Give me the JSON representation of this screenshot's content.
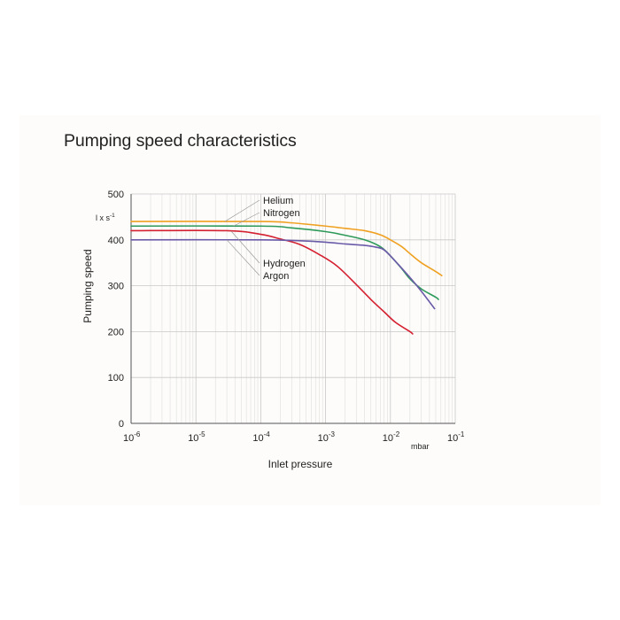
{
  "chart_data": {
    "type": "line",
    "title": "Pumping speed characteristics",
    "xlabel": "Inlet pressure",
    "x_unit": "mbar",
    "ylabel": "Pumping speed",
    "y_unit": "l x s",
    "y_unit_exp": "-1",
    "x_scale": "log",
    "xlim": [
      1e-06,
      0.1
    ],
    "ylim": [
      0,
      500
    ],
    "x_ticks": [
      {
        "value": 1e-06,
        "base": "10",
        "exp": "-6"
      },
      {
        "value": 1e-05,
        "base": "10",
        "exp": "-5"
      },
      {
        "value": 0.0001,
        "base": "10",
        "exp": "-4"
      },
      {
        "value": 0.001,
        "base": "10",
        "exp": "-3"
      },
      {
        "value": 0.01,
        "base": "10",
        "exp": "-2"
      },
      {
        "value": 0.1,
        "base": "10",
        "exp": "-1"
      }
    ],
    "y_ticks": [
      "0",
      "100",
      "200",
      "300",
      "400",
      "500"
    ],
    "grid": true,
    "series": [
      {
        "name": "Helium",
        "color": "#f0a020",
        "x": [
          1e-06,
          0.0001,
          0.0003,
          0.001,
          0.002,
          0.004,
          0.007,
          0.01,
          0.015,
          0.02,
          0.03,
          0.05,
          0.062
        ],
        "y": [
          440,
          440,
          437,
          430,
          425,
          420,
          411,
          400,
          385,
          370,
          350,
          331,
          322
        ]
      },
      {
        "name": "Nitrogen",
        "color": "#2e9a5a",
        "x": [
          1e-06,
          0.0001,
          0.0003,
          0.001,
          0.002,
          0.004,
          0.007,
          0.01,
          0.015,
          0.02,
          0.03,
          0.05,
          0.055
        ],
        "y": [
          430,
          430,
          426,
          418,
          410,
          400,
          385,
          365,
          337,
          315,
          293,
          275,
          270
        ]
      },
      {
        "name": "Hydrogen",
        "color": "#d42030",
        "x": [
          1e-06,
          3e-05,
          0.0001,
          0.0002,
          0.0004,
          0.0008,
          0.0015,
          0.003,
          0.005,
          0.008,
          0.012,
          0.02,
          0.022
        ],
        "y": [
          420,
          420,
          412,
          402,
          390,
          368,
          343,
          302,
          270,
          243,
          220,
          200,
          195
        ]
      },
      {
        "name": "Argon",
        "color": "#6a5aa8",
        "x": [
          1e-06,
          0.0001,
          0.0004,
          0.001,
          0.002,
          0.004,
          0.006,
          0.008,
          0.012,
          0.02,
          0.03,
          0.048
        ],
        "y": [
          400,
          400,
          398,
          395,
          391,
          388,
          384,
          378,
          353,
          318,
          288,
          250
        ]
      }
    ]
  }
}
